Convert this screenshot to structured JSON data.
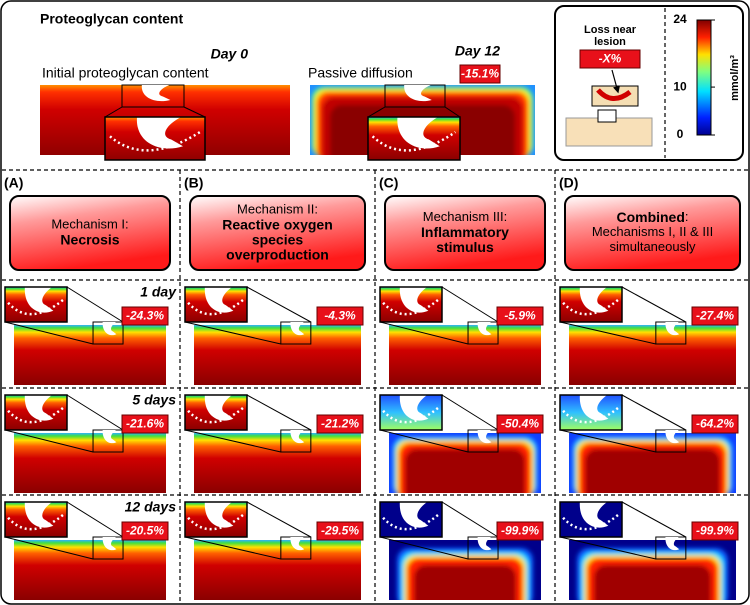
{
  "header": {
    "title": "Proteoglycan content"
  },
  "initial": {
    "day": "Day 0",
    "caption": "Initial proteoglycan content"
  },
  "passive": {
    "day": "Day 12",
    "caption": "Passive diffusion",
    "loss": "-15.1%"
  },
  "legend": {
    "caption_lines": [
      "Loss near",
      "lesion"
    ],
    "loss": "-X%",
    "range": [
      0,
      24
    ],
    "ticks": [
      0,
      10,
      24
    ],
    "unit": "mmol/m³"
  },
  "columns": [
    {
      "letter": "(A)",
      "lines": [
        [
          {
            "text": "Mechanism I:",
            "bold": false
          }
        ],
        [
          {
            "text": "Necrosis",
            "bold": true
          }
        ]
      ]
    },
    {
      "letter": "(B)",
      "lines": [
        [
          {
            "text": "Mechanism II:",
            "bold": false
          }
        ],
        [
          {
            "text": "Reactive oxygen",
            "bold": true
          }
        ],
        [
          {
            "text": "species",
            "bold": true
          }
        ],
        [
          {
            "text": "overproduction",
            "bold": true
          }
        ]
      ]
    },
    {
      "letter": "(C)",
      "lines": [
        [
          {
            "text": "Mechanism III:",
            "bold": false
          }
        ],
        [
          {
            "text": "Inflammatory",
            "bold": true
          }
        ],
        [
          {
            "text": "stimulus",
            "bold": true
          }
        ]
      ]
    },
    {
      "letter": "(D)",
      "lines": [
        [
          {
            "text": "Combined",
            "bold": true
          },
          {
            "text": ":",
            "bold": false
          }
        ],
        [
          {
            "text": "Mechanisms I, II & III",
            "bold": false
          }
        ],
        [
          {
            "text": "simultaneously",
            "bold": false
          }
        ]
      ]
    }
  ],
  "rows": [
    {
      "time": "1 day",
      "losses": [
        "-24.3%",
        "-4.3%",
        "-5.9%",
        "-27.4%"
      ]
    },
    {
      "time": "5 days",
      "losses": [
        "-21.6%",
        "-21.2%",
        "-50.4%",
        "-64.2%"
      ]
    },
    {
      "time": "12 days",
      "losses": [
        "-20.5%",
        "-29.5%",
        "-99.9%",
        "-99.9%"
      ]
    }
  ]
}
